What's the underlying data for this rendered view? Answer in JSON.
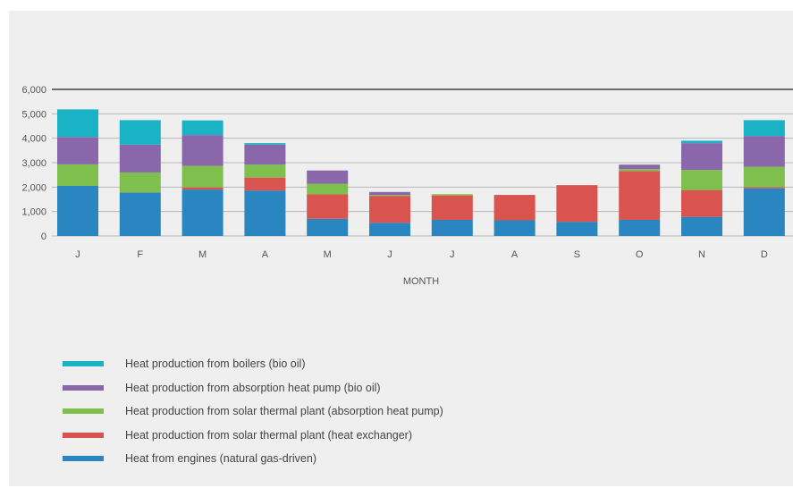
{
  "chart_data": {
    "type": "bar",
    "stacked": true,
    "categories": [
      "J",
      "F",
      "M",
      "A",
      "M",
      "J",
      "J",
      "A",
      "S",
      "O",
      "N",
      "D"
    ],
    "xlabel": "MONTH",
    "ylabel": "",
    "ylim": [
      0,
      6000
    ],
    "yticks": [
      "0",
      "1,000",
      "2,000",
      "3,000",
      "4,000",
      "5,000",
      "6,000"
    ],
    "grid": true,
    "legend_position": "bottom-left",
    "series": [
      {
        "name": "Heat from engines (natural gas-driven)",
        "color": "#2a86c0",
        "values": [
          2050,
          1780,
          1900,
          1860,
          700,
          540,
          660,
          640,
          580,
          660,
          780,
          1950
        ]
      },
      {
        "name": "Heat production from solar thermal plant (heat exchanger)",
        "color": "#d9534f",
        "values": [
          0,
          0,
          90,
          530,
          1000,
          1100,
          1000,
          1040,
          1500,
          2000,
          1100,
          50
        ]
      },
      {
        "name": "Heat production from solar thermal plant (absorption heat pump)",
        "color": "#7fbf4d",
        "values": [
          880,
          820,
          880,
          530,
          440,
          40,
          50,
          0,
          0,
          80,
          820,
          830
        ]
      },
      {
        "name": "Heat production from absorption heat pump (bio oil)",
        "color": "#8a67aa",
        "values": [
          1120,
          1140,
          1260,
          820,
          540,
          120,
          0,
          0,
          0,
          180,
          1100,
          1260
        ]
      },
      {
        "name": "Heat production from boilers (bio oil)",
        "color": "#1ab2c5",
        "values": [
          1130,
          1000,
          600,
          60,
          0,
          0,
          0,
          0,
          0,
          0,
          100,
          650
        ]
      }
    ],
    "legend_order": [
      4,
      3,
      2,
      1,
      0
    ]
  }
}
